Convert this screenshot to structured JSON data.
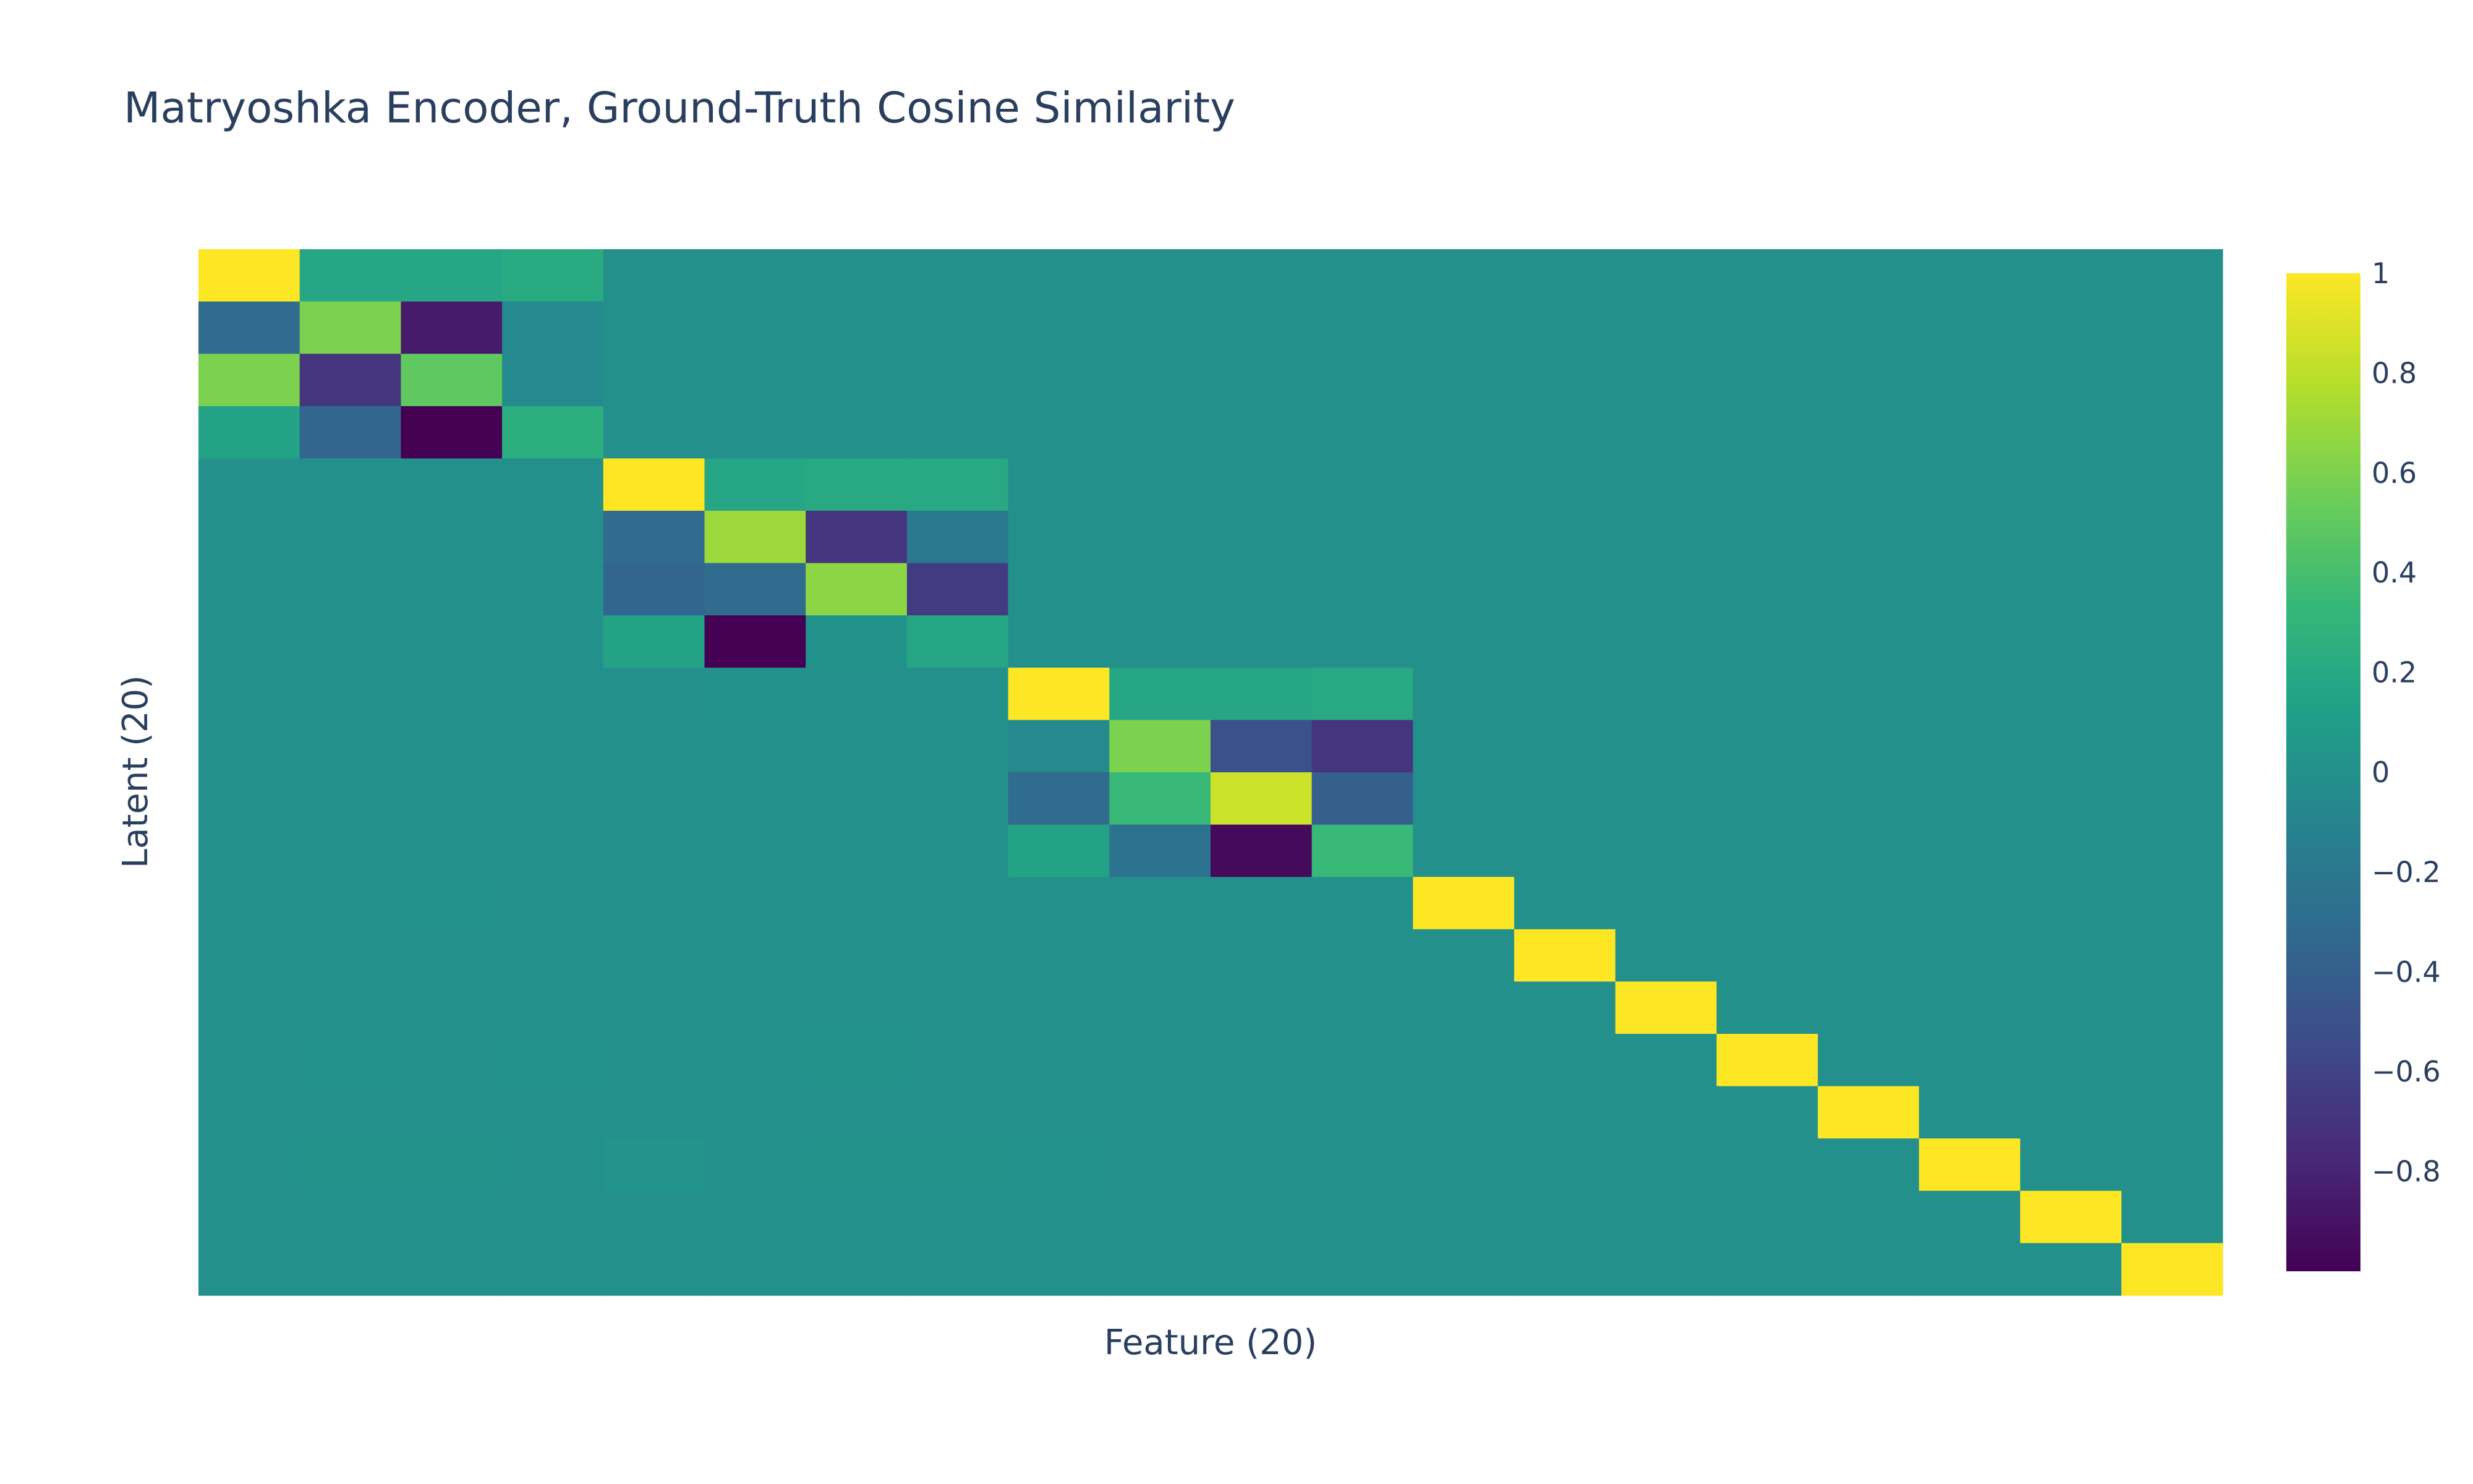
{
  "chart_data": {
    "type": "heatmap",
    "title": "Matryoshka Encoder, Ground-Truth Cosine Similarity",
    "xlabel": "Feature (20)",
    "ylabel": "Latent (20)",
    "colorscale": "Viridis",
    "zmin": -1,
    "zmax": 1,
    "colorbar": {
      "tickvals": [
        1,
        0.8,
        0.6,
        0.4,
        0.2,
        0,
        -0.2,
        -0.4,
        -0.6,
        -0.8
      ],
      "ticktext": [
        "1",
        "0.8",
        "0.6",
        "0.4",
        "0.2",
        "0",
        "−0.2",
        "−0.4",
        "−0.6",
        "−0.8"
      ]
    },
    "z": [
      [
        1.0,
        0.18,
        0.18,
        0.22,
        0,
        0,
        0,
        0,
        0,
        0,
        0,
        0,
        0,
        0,
        0,
        0,
        0,
        0,
        0,
        0
      ],
      [
        -0.3,
        0.6,
        -0.85,
        -0.05,
        0,
        0,
        0,
        0,
        0,
        0,
        0,
        0,
        0,
        0,
        0,
        0,
        0,
        0,
        0,
        0
      ],
      [
        0.6,
        -0.7,
        0.5,
        -0.05,
        0,
        0,
        0,
        0,
        0,
        0,
        0,
        0,
        0,
        0,
        0,
        0,
        0,
        0,
        0,
        0
      ],
      [
        0.15,
        -0.35,
        -1.0,
        0.25,
        0,
        0,
        0,
        0,
        0,
        0,
        0,
        0,
        0,
        0,
        0,
        0,
        0,
        0,
        0,
        0
      ],
      [
        0,
        0,
        0,
        0,
        1.0,
        0.18,
        0.2,
        0.2,
        0,
        0,
        0,
        0,
        0,
        0,
        0,
        0,
        0,
        0,
        0,
        0
      ],
      [
        0,
        0,
        0,
        0,
        -0.3,
        0.7,
        -0.7,
        -0.2,
        0,
        0,
        0,
        0,
        0,
        0,
        0,
        0,
        0,
        0,
        0,
        0
      ],
      [
        0,
        0,
        0,
        0,
        -0.35,
        -0.3,
        0.65,
        -0.65,
        0,
        0,
        0,
        0,
        0,
        0,
        0,
        0,
        0,
        0,
        0,
        0
      ],
      [
        0,
        0,
        0,
        0,
        0.15,
        -1.0,
        0.02,
        0.18,
        0,
        0,
        0,
        0,
        0,
        0,
        0,
        0,
        0,
        0,
        0,
        0
      ],
      [
        0,
        0,
        0,
        0,
        0,
        0.01,
        0,
        0,
        1.0,
        0.18,
        0.18,
        0.2,
        0,
        0,
        0,
        0,
        0,
        0,
        0,
        0
      ],
      [
        0,
        0,
        0,
        0,
        0,
        0,
        0,
        0,
        -0.05,
        0.6,
        -0.5,
        -0.7,
        0,
        0,
        0,
        0,
        0,
        0,
        0,
        0
      ],
      [
        0,
        0,
        0,
        0,
        0,
        0,
        0,
        0,
        -0.3,
        0.35,
        0.85,
        -0.4,
        0,
        0,
        0,
        0,
        0,
        0,
        0,
        0
      ],
      [
        0,
        0,
        0,
        0,
        0,
        0,
        0,
        0,
        0.15,
        -0.25,
        -0.95,
        0.35,
        0,
        0,
        0,
        0,
        0,
        0,
        0,
        0
      ],
      [
        0,
        0,
        0.01,
        0,
        0,
        0,
        0,
        0,
        0,
        0,
        0,
        0,
        1.0,
        0,
        0,
        0,
        0,
        0,
        0,
        0
      ],
      [
        0,
        0,
        0,
        0,
        0,
        0,
        0,
        0,
        0,
        0,
        0,
        0,
        0,
        1.0,
        0,
        0,
        0,
        0,
        0,
        0
      ],
      [
        0,
        0,
        0,
        0,
        0,
        0,
        0,
        0,
        0,
        0,
        0,
        0,
        0,
        0,
        1.0,
        0,
        0,
        0,
        0,
        0
      ],
      [
        0,
        0.01,
        0,
        0.01,
        0,
        0,
        0.02,
        0,
        0,
        0,
        0,
        0,
        0,
        0,
        0,
        1.0,
        0,
        0,
        0,
        0
      ],
      [
        0,
        0,
        0,
        0,
        0,
        0,
        0,
        0,
        0,
        0,
        0,
        0,
        0,
        0,
        0,
        0,
        1.0,
        0,
        0,
        0
      ],
      [
        0,
        0.02,
        0.02,
        0,
        0.03,
        0,
        0.02,
        0.02,
        0.01,
        0,
        0,
        0,
        0,
        0,
        0,
        0,
        0,
        1.0,
        0,
        0
      ],
      [
        0,
        0,
        0,
        0,
        0,
        0,
        0,
        0,
        0,
        0,
        0,
        0,
        0,
        0,
        0,
        0,
        0,
        0,
        1.0,
        0
      ],
      [
        0,
        0,
        0,
        0,
        0,
        0,
        0,
        0,
        0,
        0,
        0,
        0,
        0,
        0,
        0,
        0,
        0,
        0,
        0,
        1.0
      ]
    ]
  }
}
